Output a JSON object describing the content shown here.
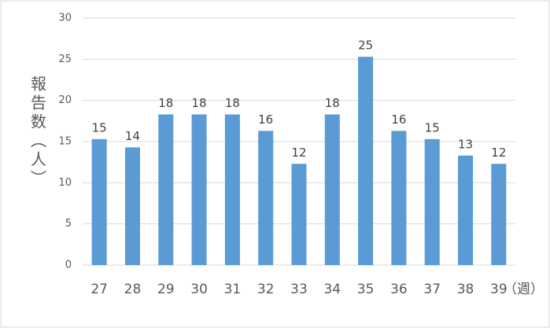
{
  "chart_data": {
    "type": "bar",
    "y_label": "報告数（人）",
    "x_unit": "（週）",
    "categories": [
      "27",
      "28",
      "29",
      "30",
      "31",
      "32",
      "33",
      "34",
      "35",
      "36",
      "37",
      "38",
      "39"
    ],
    "values": [
      15.3,
      14.3,
      18.3,
      18.3,
      18.3,
      16.3,
      12.3,
      18.3,
      25.3,
      16.3,
      15.3,
      13.3,
      12.3
    ],
    "value_labels": [
      "15",
      "14",
      "18",
      "18",
      "18",
      "16",
      "12",
      "18",
      "25",
      "16",
      "15",
      "13",
      "12"
    ],
    "color": "#5b9bd5",
    "ylim": [
      0,
      30
    ],
    "yticks": [
      0,
      5,
      10,
      15,
      20,
      25,
      30
    ],
    "grid": true
  }
}
